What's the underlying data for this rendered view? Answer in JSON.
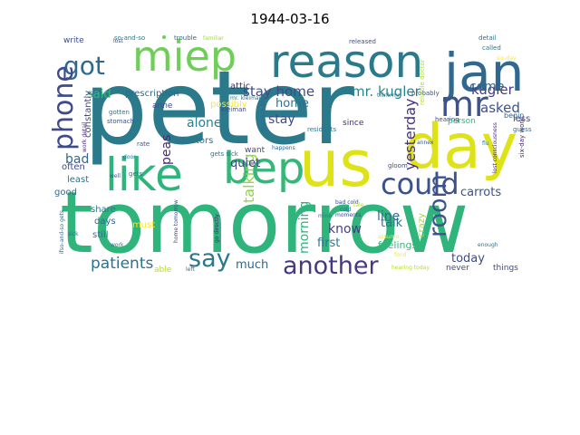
{
  "title": "1944-03-16",
  "background": "#ffffff",
  "words": [
    {
      "text": "peter",
      "color": "#2a7a8c"
    },
    {
      "text": "tomorrow",
      "color": "#2fb47c"
    },
    {
      "text": "us",
      "color": "#dde318"
    },
    {
      "text": "day",
      "color": "#dde318"
    },
    {
      "text": "reason",
      "color": "#2a7a8c"
    },
    {
      "text": "jan",
      "color": "#31688e"
    },
    {
      "text": "miep",
      "color": "#6ece58"
    },
    {
      "text": "bep",
      "color": "#35b779"
    },
    {
      "text": "like",
      "color": "#2fb47c"
    },
    {
      "text": "mr",
      "color": "#3b528b"
    },
    {
      "text": "got",
      "color": "#31688e"
    },
    {
      "text": "phone",
      "color": "#3e4a89"
    },
    {
      "text": "could",
      "color": "#3b528b"
    },
    {
      "text": "another",
      "color": "#443983"
    },
    {
      "text": "say",
      "color": "#2a788e"
    },
    {
      "text": "room",
      "color": "#3b528b"
    },
    {
      "text": "patients",
      "color": "#2c728e"
    },
    {
      "text": "mr. kugler",
      "color": "#26828e"
    },
    {
      "text": "stay home",
      "color": "#3e4a89"
    },
    {
      "text": "kugler",
      "color": "#443983"
    },
    {
      "text": "said",
      "color": "#35b779"
    },
    {
      "text": "yesterday",
      "color": "#46327e"
    },
    {
      "text": "talking",
      "color": "#8fd744"
    },
    {
      "text": "asked",
      "color": "#3b528b"
    },
    {
      "text": "come",
      "color": "#31688e"
    },
    {
      "text": "alone",
      "color": "#26828e"
    },
    {
      "text": "peas",
      "color": "#482878"
    },
    {
      "text": "home",
      "color": "#2c728e"
    },
    {
      "text": "stay",
      "color": "#3e4a89"
    },
    {
      "text": "bad",
      "color": "#31688e"
    },
    {
      "text": "quiet",
      "color": "#433e85"
    },
    {
      "text": "carrots",
      "color": "#3b528b"
    },
    {
      "text": "talk",
      "color": "#2c728e"
    },
    {
      "text": "know",
      "color": "#433e85"
    },
    {
      "text": "line",
      "color": "#31688e"
    },
    {
      "text": "morning",
      "color": "#2fb47c"
    },
    {
      "text": "first",
      "color": "#2a788e"
    },
    {
      "text": "today",
      "color": "#3e4a89"
    },
    {
      "text": "much",
      "color": "#31688e"
    },
    {
      "text": "feelings",
      "color": "#35b779"
    },
    {
      "text": "constantly",
      "color": "#3e4a89"
    },
    {
      "text": "prescription",
      "color": "#31688e"
    },
    {
      "text": "possibly",
      "color": "#fde725"
    },
    {
      "text": "attic",
      "color": "#482878"
    },
    {
      "text": "anne",
      "color": "#3b528b"
    },
    {
      "text": "often",
      "color": "#3e4a89"
    },
    {
      "text": "least",
      "color": "#2c728e"
    },
    {
      "text": "good",
      "color": "#31688e"
    },
    {
      "text": "share",
      "color": "#2a788e"
    },
    {
      "text": "days",
      "color": "#31688e"
    },
    {
      "text": "still",
      "color": "#2c728e"
    },
    {
      "text": "must",
      "color": "#fde725"
    },
    {
      "text": "able",
      "color": "#b5de2b"
    },
    {
      "text": "doctors",
      "color": "#2c728e"
    },
    {
      "text": "want",
      "color": "#3e4a89"
    },
    {
      "text": "crazy",
      "color": "#a0da39"
    },
    {
      "text": "things",
      "color": "#3e4a89"
    },
    {
      "text": "never",
      "color": "#3e4a89"
    },
    {
      "text": "write",
      "color": "#3e4a89"
    },
    {
      "text": "begin",
      "color": "#31688e"
    },
    {
      "text": "less",
      "color": "#3e4a89"
    },
    {
      "text": "since",
      "color": "#482878"
    },
    {
      "text": "person",
      "color": "#35b779"
    },
    {
      "text": "guess",
      "color": "#2c728e"
    },
    {
      "text": "six-day work",
      "color": "#482878"
    },
    {
      "text": "so-and-so",
      "color": "#2a788e"
    },
    {
      "text": "trouble",
      "color": "#31688e"
    },
    {
      "text": "familiar",
      "color": "#a0da39"
    },
    {
      "text": "released",
      "color": "#3b528b"
    },
    {
      "text": "detail",
      "color": "#2c728e"
    },
    {
      "text": "called",
      "color": "#2a788e"
    },
    {
      "text": "six-day",
      "color": "#fde725"
    },
    {
      "text": "probably",
      "color": "#3b528b"
    },
    {
      "text": "think mr.",
      "color": "#2c728e"
    },
    {
      "text": "residents",
      "color": "#2a788e"
    },
    {
      "text": "hearing",
      "color": "#3b528b"
    },
    {
      "text": "stomach",
      "color": "#3b528b"
    },
    {
      "text": "gotten",
      "color": "#2c728e"
    },
    {
      "text": "work detail",
      "color": "#482878"
    },
    {
      "text": "rate",
      "color": "#3b528b"
    },
    {
      "text": "gets sick",
      "color": "#2c728e"
    },
    {
      "text": "happens",
      "color": "#31688e"
    },
    {
      "text": "gloom",
      "color": "#3e4a89"
    },
    {
      "text": "lost consciousness",
      "color": "#482878"
    },
    {
      "text": "reliable doctor",
      "color": "#b5de2b"
    },
    {
      "text": "annex",
      "color": "#3b528b"
    },
    {
      "text": "flu",
      "color": "#2a788e"
    },
    {
      "text": "enough",
      "color": "#2c728e"
    },
    {
      "text": "ifso-and-so gets",
      "color": "#31688e"
    },
    {
      "text": "sick",
      "color": "#2c728e"
    },
    {
      "text": "moments",
      "color": "#3e4a89"
    },
    {
      "text": "home tomorrow",
      "color": "#3e4a89"
    },
    {
      "text": "go directly",
      "color": "#482878"
    },
    {
      "text": "bad cold",
      "color": "#3e4a89"
    },
    {
      "text": "cold",
      "color": "#31688e"
    },
    {
      "text": "assume",
      "color": "#fde725"
    },
    {
      "text": "left",
      "color": "#2c728e"
    },
    {
      "text": "hearing today",
      "color": "#b5de2b"
    },
    {
      "text": "work",
      "color": "#2c728e"
    },
    {
      "text": "well",
      "color": "#3b528b"
    },
    {
      "text": "gets",
      "color": "#2c728e"
    },
    {
      "text": "lost",
      "color": "#3e4a89"
    },
    {
      "text": "mr. kleiman",
      "color": "#2c728e"
    },
    {
      "text": "kleiman",
      "color": "#3e4a89"
    },
    {
      "text": "stomach bled",
      "color": "#31688e"
    },
    {
      "text": "door",
      "color": "#2c728e"
    },
    {
      "text": "tale",
      "color": "#b5de2b"
    },
    {
      "text": "fond",
      "color": "#fde725"
    },
    {
      "text": "mine",
      "color": "#2a788e"
    }
  ]
}
